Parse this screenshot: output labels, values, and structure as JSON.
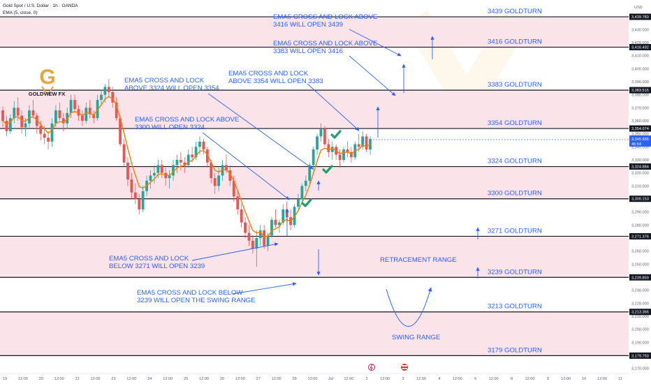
{
  "header": {
    "symbol": "Gold Spot / U.S. Dollar · 1h · OANDA",
    "indicator": "EMA (5, close, 0)",
    "currency": "USD"
  },
  "logo": {
    "letter": "G",
    "name": "GOLDVIEW FX"
  },
  "watermark": "GOLDVIEW FX",
  "colors": {
    "zone": "#fbe3ea",
    "level_line": "#131722",
    "annotation": "#2962ff",
    "candle_up": "#26a69a",
    "candle_down": "#ef5350",
    "ema": "#f57c00",
    "check": "#22a06b",
    "price_tag": "#131722",
    "current_tag": "#2962ff"
  },
  "chart_data": {
    "type": "candlestick",
    "title": "Gold Spot / U.S. Dollar · 1h · OANDA",
    "ylim": [
      3165,
      3450
    ],
    "y_ticks": [
      3170,
      3180,
      3190,
      3200,
      3210,
      3220,
      3230,
      3240,
      3250,
      3260,
      3270,
      3280,
      3290,
      3300,
      3310,
      3320,
      3330,
      3340,
      3350,
      3360,
      3370,
      3380,
      3390,
      3400,
      3410,
      3420,
      3430,
      3440
    ],
    "y_tick_labels": [
      "3,170.000",
      "3,180.000",
      "3,190.000",
      "3,200.000",
      "3,210.000",
      "3,220.000",
      "3,230.000",
      "3,240.000",
      "3,250.000",
      "3,260.000",
      "3,270.000",
      "3,280.000",
      "3,290.000",
      "3,300.000",
      "3,310.000",
      "3,320.000",
      "3,330.000",
      "3,340.000",
      "3,350.000",
      "3,360.000",
      "3,370.000",
      "3,380.000",
      "3,390.000",
      "3,400.000",
      "3,410.000",
      "3,420.000",
      "3,430.000",
      "3,440.000"
    ],
    "x_tick_labels": [
      "19",
      "12:00",
      "20",
      "12:00",
      "22",
      "12:00",
      "23",
      "12:00",
      "24",
      "12:00",
      "25",
      "12:00",
      "26",
      "12:00",
      "27",
      "12:00",
      "29",
      "12:00",
      "Jul",
      "12:00",
      "2",
      "12:00",
      "3",
      "12:00",
      "4",
      "12:00",
      "6",
      "12:00",
      "8",
      "12:00",
      "9",
      "12:00",
      "10",
      "12:00",
      "11"
    ],
    "levels": [
      {
        "price": 3439.783,
        "tag": "3,439.783",
        "label": "3439 GOLDTURN"
      },
      {
        "price": 3416.492,
        "tag": "3,416.492",
        "label": "3416 GOLDTURN"
      },
      {
        "price": 3383.515,
        "tag": "3,383.515",
        "label": "3383 GOLDTURN"
      },
      {
        "price": 3354.074,
        "tag": "3,354.074",
        "label": "3354 GOLDTURN"
      },
      {
        "price": 3324.884,
        "tag": "3,324.884",
        "label": "3324 GOLDTURN"
      },
      {
        "price": 3300.153,
        "tag": "3,300.153",
        "label": "3300 GOLDTURN"
      },
      {
        "price": 3271.376,
        "tag": "3,271.376",
        "label": "3271 GOLDTURN"
      },
      {
        "price": 3239.859,
        "tag": "3,239.859",
        "label": "3239 GOLDTURN"
      },
      {
        "price": 3213.366,
        "tag": "3,213.366",
        "label": "3213 GOLDTURN"
      },
      {
        "price": 3179.793,
        "tag": "3,179.793",
        "label": "3179 GOLDTURN"
      }
    ],
    "zones": [
      [
        3416.492,
        3439.783
      ],
      [
        3354.074,
        3383.515
      ],
      [
        3300.153,
        3324.884
      ],
      [
        3239.859,
        3271.376
      ],
      [
        3179.793,
        3213.366
      ]
    ],
    "current_price": {
      "price": 3345.565,
      "tag": "3,345.565",
      "countdown": "46:54"
    },
    "ohlc": [
      [
        3368,
        3371,
        3355,
        3360
      ],
      [
        3360,
        3364,
        3348,
        3352
      ],
      [
        3352,
        3365,
        3350,
        3362
      ],
      [
        3362,
        3375,
        3358,
        3370
      ],
      [
        3370,
        3378,
        3360,
        3364
      ],
      [
        3364,
        3368,
        3350,
        3355
      ],
      [
        3355,
        3362,
        3348,
        3358
      ],
      [
        3358,
        3372,
        3355,
        3368
      ],
      [
        3368,
        3376,
        3362,
        3364
      ],
      [
        3364,
        3366,
        3350,
        3356
      ],
      [
        3356,
        3360,
        3345,
        3350
      ],
      [
        3350,
        3356,
        3342,
        3347
      ],
      [
        3347,
        3352,
        3338,
        3344
      ],
      [
        3344,
        3362,
        3340,
        3358
      ],
      [
        3358,
        3372,
        3355,
        3368
      ],
      [
        3368,
        3374,
        3360,
        3362
      ],
      [
        3362,
        3366,
        3352,
        3358
      ],
      [
        3358,
        3370,
        3354,
        3366
      ],
      [
        3366,
        3380,
        3362,
        3376
      ],
      [
        3376,
        3380,
        3366,
        3369
      ],
      [
        3369,
        3372,
        3360,
        3364
      ],
      [
        3364,
        3368,
        3356,
        3360
      ],
      [
        3360,
        3374,
        3358,
        3370
      ],
      [
        3370,
        3376,
        3362,
        3365
      ],
      [
        3365,
        3368,
        3358,
        3362
      ],
      [
        3362,
        3380,
        3360,
        3376
      ],
      [
        3376,
        3384,
        3372,
        3380
      ],
      [
        3380,
        3388,
        3374,
        3386
      ],
      [
        3386,
        3392,
        3378,
        3382
      ],
      [
        3382,
        3386,
        3370,
        3374
      ],
      [
        3374,
        3378,
        3360,
        3362
      ],
      [
        3362,
        3364,
        3340,
        3342
      ],
      [
        3342,
        3346,
        3325,
        3328
      ],
      [
        3328,
        3332,
        3310,
        3315
      ],
      [
        3315,
        3320,
        3300,
        3305
      ],
      [
        3305,
        3312,
        3296,
        3300
      ],
      [
        3300,
        3304,
        3288,
        3292
      ],
      [
        3292,
        3310,
        3290,
        3306
      ],
      [
        3306,
        3318,
        3302,
        3314
      ],
      [
        3314,
        3322,
        3308,
        3318
      ],
      [
        3318,
        3326,
        3312,
        3320
      ],
      [
        3320,
        3330,
        3316,
        3326
      ],
      [
        3326,
        3330,
        3316,
        3320
      ],
      [
        3320,
        3324,
        3310,
        3316
      ],
      [
        3316,
        3322,
        3308,
        3318
      ],
      [
        3318,
        3330,
        3314,
        3326
      ],
      [
        3326,
        3334,
        3320,
        3330
      ],
      [
        3330,
        3336,
        3322,
        3328
      ],
      [
        3328,
        3332,
        3320,
        3326
      ],
      [
        3326,
        3338,
        3324,
        3334
      ],
      [
        3334,
        3340,
        3328,
        3332
      ],
      [
        3332,
        3344,
        3330,
        3340
      ],
      [
        3340,
        3348,
        3334,
        3344
      ],
      [
        3344,
        3346,
        3334,
        3338
      ],
      [
        3338,
        3340,
        3324,
        3328
      ],
      [
        3328,
        3330,
        3312,
        3316
      ],
      [
        3316,
        3320,
        3304,
        3310
      ],
      [
        3310,
        3324,
        3306,
        3318
      ],
      [
        3318,
        3330,
        3314,
        3326
      ],
      [
        3326,
        3334,
        3320,
        3322
      ],
      [
        3322,
        3326,
        3310,
        3314
      ],
      [
        3314,
        3318,
        3298,
        3302
      ],
      [
        3302,
        3306,
        3288,
        3292
      ],
      [
        3292,
        3296,
        3278,
        3282
      ],
      [
        3282,
        3286,
        3270,
        3274
      ],
      [
        3274,
        3280,
        3264,
        3268
      ],
      [
        3268,
        3272,
        3258,
        3262
      ],
      [
        3262,
        3276,
        3248,
        3270
      ],
      [
        3270,
        3280,
        3264,
        3276
      ],
      [
        3276,
        3280,
        3262,
        3264
      ],
      [
        3264,
        3274,
        3260,
        3272
      ],
      [
        3272,
        3286,
        3270,
        3284
      ],
      [
        3284,
        3292,
        3278,
        3280
      ],
      [
        3280,
        3284,
        3274,
        3282
      ],
      [
        3282,
        3296,
        3280,
        3292
      ],
      [
        3292,
        3298,
        3282,
        3286
      ],
      [
        3286,
        3292,
        3276,
        3280
      ],
      [
        3280,
        3296,
        3278,
        3294
      ],
      [
        3294,
        3304,
        3290,
        3300
      ],
      [
        3300,
        3312,
        3296,
        3310
      ],
      [
        3310,
        3318,
        3306,
        3314
      ],
      [
        3314,
        3328,
        3312,
        3326
      ],
      [
        3326,
        3340,
        3322,
        3338
      ],
      [
        3338,
        3350,
        3334,
        3348
      ],
      [
        3348,
        3358,
        3344,
        3354
      ],
      [
        3354,
        3356,
        3340,
        3342
      ],
      [
        3342,
        3346,
        3332,
        3336
      ],
      [
        3336,
        3344,
        3330,
        3340
      ],
      [
        3340,
        3342,
        3330,
        3334
      ],
      [
        3334,
        3338,
        3324,
        3330
      ],
      [
        3330,
        3340,
        3328,
        3338
      ],
      [
        3338,
        3344,
        3332,
        3336
      ],
      [
        3336,
        3340,
        3328,
        3332
      ],
      [
        3332,
        3344,
        3330,
        3342
      ],
      [
        3342,
        3350,
        3336,
        3340
      ],
      [
        3340,
        3352,
        3338,
        3348
      ],
      [
        3348,
        3350,
        3336,
        3338
      ],
      [
        3338,
        3348,
        3334,
        3346
      ]
    ],
    "annotations": [
      {
        "lines": [
          "EMA5 CROSS AND LOCK ABOVE",
          "3416 WILL OPEN 3439"
        ]
      },
      {
        "lines": [
          "EMA5 CROSS AND LOCK ABOVE",
          "3383 WILL OPEN 3416"
        ]
      },
      {
        "lines": [
          "EMA5 CROSS AND LOCK",
          "ABOVE 3324 WILL OPEN 3354"
        ]
      },
      {
        "lines": [
          "EMA5 CROSS AND LOCK",
          "ABOVE 3354 WILL OPEN 3383"
        ]
      },
      {
        "lines": [
          "EMA5 CROSS AND LOCK ABOVE",
          "3300 WILL OPEN 3324"
        ]
      },
      {
        "lines": [
          "EMA5 CROSS AND LOCK",
          "BELOW 3271 WILL OPEN 3239"
        ]
      },
      {
        "lines": [
          "EMA5 CROSS AND LOCK BELOW",
          "3239 WILL OPEN THE SWING RANGE"
        ]
      }
    ],
    "range_labels": [
      "RETRACEMENT RANGE",
      "SWING RANGE"
    ]
  }
}
